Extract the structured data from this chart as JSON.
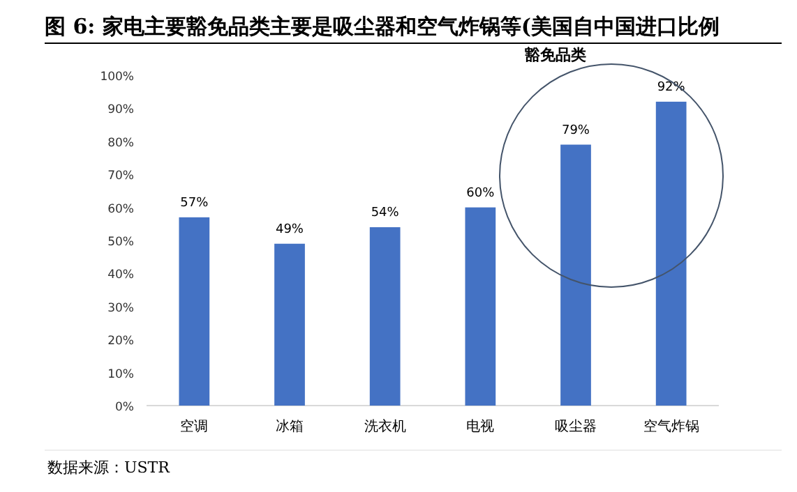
{
  "chart_data": {
    "type": "bar",
    "title": "图 6: 家电主要豁免品类主要是吸尘器和空气炸锅等(美国自中国进口比例",
    "categories": [
      "空调",
      "冰箱",
      "洗衣机",
      "电视",
      "吸尘器",
      "空气炸锅"
    ],
    "values": [
      57,
      49,
      54,
      60,
      79,
      92
    ],
    "value_labels": [
      "57%",
      "49%",
      "54%",
      "60%",
      "79%",
      "92%"
    ],
    "color": "#4472c4",
    "ylim": [
      0,
      100
    ],
    "yticks": [
      {
        "value": 0,
        "label": "0%"
      },
      {
        "value": 10,
        "label": "10%"
      },
      {
        "value": 20,
        "label": "20%"
      },
      {
        "value": 30,
        "label": "30%"
      },
      {
        "value": 40,
        "label": "40%"
      },
      {
        "value": 50,
        "label": "50%"
      },
      {
        "value": 60,
        "label": "60%"
      },
      {
        "value": 70,
        "label": "70%"
      },
      {
        "value": 80,
        "label": "80%"
      },
      {
        "value": 90,
        "label": "90%"
      },
      {
        "value": 100,
        "label": "100%"
      }
    ],
    "grid": false,
    "annotations": [
      "豁免品类",
      "数据来源：USTR"
    ]
  }
}
